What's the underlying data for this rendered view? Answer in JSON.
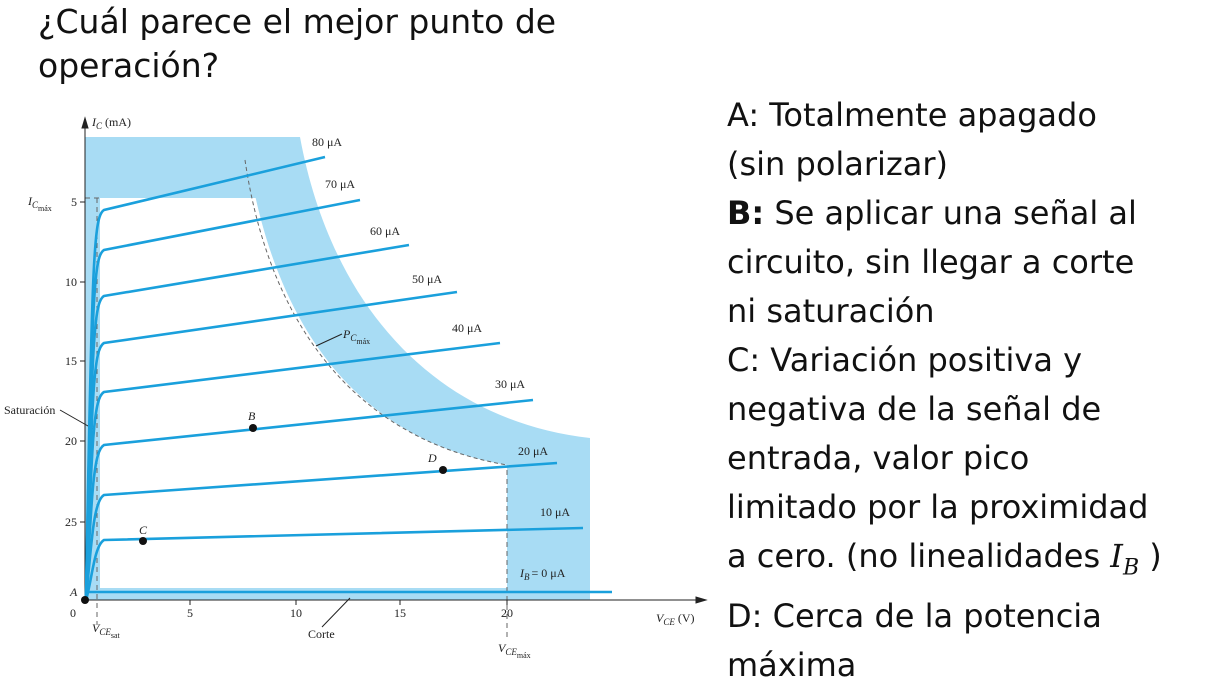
{
  "title": [
    "¿Cuál parece el mejor punto de",
    "operación?"
  ],
  "figure": {
    "y_axis_label": {
      "symbol": "I",
      "sub": "C",
      "unit": "(mA)"
    },
    "x_axis_label": {
      "symbol": "V",
      "sub": "CE",
      "unit": "(V)"
    },
    "icmax_label": {
      "symbol": "I",
      "sub": "C",
      "subsub": "máx"
    },
    "pcmax_label": {
      "symbol": "P",
      "sub": "C",
      "subsub": "máx"
    },
    "vcesat_label": {
      "symbol": "V",
      "sub": "CE",
      "subsub": "sat"
    },
    "vcemax_label": {
      "symbol": "V",
      "sub": "CE",
      "subsub": "máx"
    },
    "saturation_label": "Saturación",
    "cutoff_label": "Corte",
    "x_ticks": [
      "0",
      "5",
      "10",
      "15",
      "20"
    ],
    "y_ticks": [
      "5",
      "10",
      "15",
      "20",
      "25"
    ],
    "curve_labels": [
      "80 μA",
      "70 μA",
      "60 μA",
      "50 μA",
      "40 μA",
      "30 μA",
      "20 μA",
      "10 μA"
    ],
    "zero_curve_label": {
      "symbol": "I",
      "sub": "B",
      "rest": "= 0 μA"
    },
    "points": [
      "A",
      "B",
      "C",
      "D"
    ]
  },
  "answers": [
    {
      "letter": "A:",
      "bold": false,
      "lines": [
        "Totalmente apagado",
        "(sin polarizar)"
      ]
    },
    {
      "letter": "B:",
      "bold": true,
      "lines": [
        "Se aplicar una señal al",
        "circuito, sin llegar a corte",
        "ni saturación"
      ]
    },
    {
      "letter": "C:",
      "bold": false,
      "lines": [
        "Variación positiva y",
        "negativa de la señal de",
        "entrada, valor pico",
        "limitado por la proximidad",
        "a cero. (no linealidades"
      ],
      "math_var": "I",
      "math_sub": "B",
      "math_close": ")"
    },
    {
      "letter": "D:",
      "bold": false,
      "lines": [
        "Cerca de la potencia",
        "máxima"
      ]
    }
  ]
}
